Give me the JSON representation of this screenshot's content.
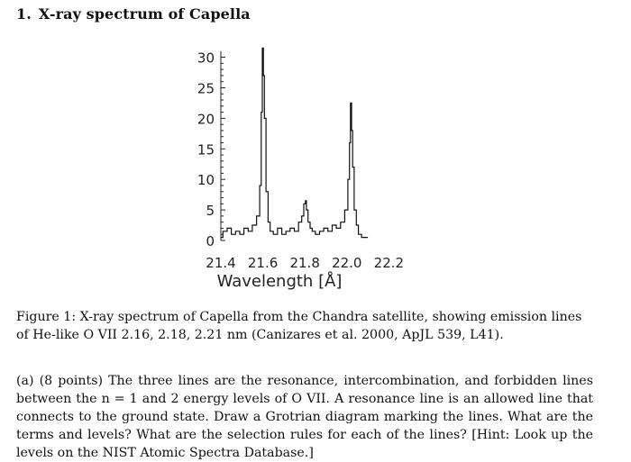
{
  "section": {
    "number": "1.",
    "title": "X-ray spectrum of Capella"
  },
  "chart_data": {
    "type": "line",
    "title": "",
    "xlabel": "Wavelength [Å]",
    "ylabel": "",
    "xlim": [
      21.4,
      22.28
    ],
    "ylim": [
      0,
      32
    ],
    "xticks": [
      21.4,
      21.6,
      21.8,
      22.0,
      22.2
    ],
    "xtick_labels": [
      "21.4",
      "21.6",
      "21.8",
      "22.0",
      "22.2"
    ],
    "yticks": [
      0,
      5,
      10,
      15,
      20,
      25,
      30
    ],
    "ytick_labels": [
      "0",
      "5",
      "10",
      "15",
      "20",
      "25",
      "30"
    ],
    "grid": false,
    "series": [
      {
        "x": [
          21.4,
          21.42,
          21.44,
          21.46,
          21.48,
          21.5,
          21.52,
          21.54,
          21.56,
          21.58,
          21.59,
          21.595,
          21.6,
          21.605,
          21.61,
          21.62,
          21.63,
          21.64,
          21.66,
          21.68,
          21.7,
          21.72,
          21.74,
          21.76,
          21.78,
          21.79,
          21.8,
          21.805,
          21.81,
          21.82,
          21.83,
          21.84,
          21.86,
          21.88,
          21.9,
          21.92,
          21.94,
          21.96,
          21.98,
          22.0,
          22.01,
          22.015,
          22.02,
          22.025,
          22.03,
          22.04,
          22.05,
          22.06,
          22.08,
          22.1
        ],
        "y": [
          0.5,
          1.5,
          2.0,
          1.0,
          1.5,
          1.0,
          2.0,
          1.5,
          2.5,
          4.0,
          9.0,
          21.0,
          31.5,
          27.0,
          20.0,
          8.0,
          3.0,
          1.5,
          1.0,
          2.0,
          1.0,
          1.5,
          2.0,
          1.5,
          3.0,
          4.0,
          6.0,
          6.5,
          5.0,
          3.0,
          2.0,
          1.5,
          1.0,
          1.5,
          2.0,
          1.5,
          2.5,
          2.0,
          3.0,
          5.0,
          10.0,
          16.0,
          22.5,
          18.0,
          12.0,
          5.0,
          2.5,
          1.0,
          0.5,
          0.5
        ]
      }
    ]
  },
  "caption": {
    "prefix": "Figure 1: ",
    "text": "X-ray spectrum of Capella from the Chandra satellite, showing emission lines of He-like O VII 2.16, 2.18, 2.21 nm (Canizares et al. 2000, ApJL 539, L41)."
  },
  "question": {
    "text": "(a) (8 points) The three lines are the resonance, intercombination, and forbidden lines between the n = 1 and 2 energy levels of O VII. A resonance line is an allowed line that connects to the ground state. Draw a Grotrian diagram marking the lines. What are the terms and levels? What are the selection rules for each of the lines? [Hint: Look up the levels on the NIST Atomic Spectra Database.]"
  }
}
